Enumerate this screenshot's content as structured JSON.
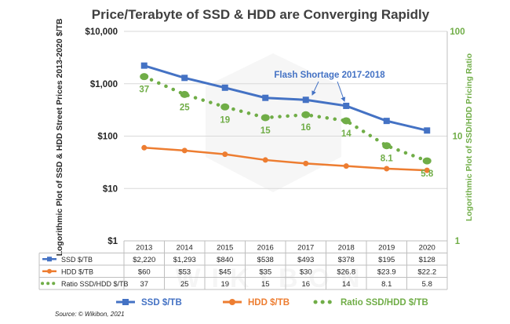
{
  "chart_data": {
    "type": "line",
    "title": "Price/Terabyte of SSD & HDD are Converging Rapidly",
    "ylabel": "Logorithmic Plot of SSD & HDD Street Prices 2013-2020 $/TB",
    "y2label": "Logorithmic Plot of SSD/HDD Pricing Ratio",
    "yscale": "log",
    "ylim": [
      1,
      10000
    ],
    "y_ticks": [
      "$10,000",
      "$1,000",
      "$100",
      "$10",
      "$1"
    ],
    "y2lim": [
      1,
      100
    ],
    "y2_ticks": [
      "100",
      "10",
      "1"
    ],
    "categories": [
      "2013",
      "2014",
      "2015",
      "2016",
      "2017",
      "2018",
      "2019",
      "2020"
    ],
    "series": [
      {
        "name": "SSD $/TB",
        "axis": "left",
        "color": "#4472C4",
        "values": [
          2220,
          1293,
          840,
          538,
          493,
          378,
          195,
          128
        ],
        "table_values": [
          "$2,220",
          "$1,293",
          "$840",
          "$538",
          "$493",
          "$378",
          "$195",
          "$128"
        ]
      },
      {
        "name": "HDD $/TB",
        "axis": "left",
        "color": "#ED7D31",
        "values": [
          60,
          53,
          45,
          35,
          30,
          26.8,
          23.9,
          22.2
        ],
        "table_values": [
          "$60",
          "$53",
          "$45",
          "$35",
          "$30",
          "$26.8",
          "$23.9",
          "$22.2"
        ]
      },
      {
        "name": "Ratio SSD/HDD $/TB",
        "axis": "right",
        "color": "#70AD47",
        "values": [
          37,
          25,
          19,
          15,
          16,
          14,
          8.1,
          5.8
        ],
        "table_values": [
          "37",
          "25",
          "19",
          "15",
          "16",
          "14",
          "8.1",
          "5.8"
        ],
        "data_labels": [
          "37",
          "25",
          "19",
          "15",
          "16",
          "14",
          "8.1",
          "5.8"
        ]
      }
    ],
    "annotation": "Flash Shortage 2017-2018",
    "legend": [
      "SSD $/TB",
      "HDD $/TB",
      "Ratio SSD/HDD $/TB"
    ],
    "legend_position": "bottom",
    "source": "Source: © Wikibon, 2021",
    "watermark": "WIKIBON",
    "grid_color": "#d9d9d9",
    "title_color": "#404040",
    "right_axis_color": "#70AD47"
  }
}
